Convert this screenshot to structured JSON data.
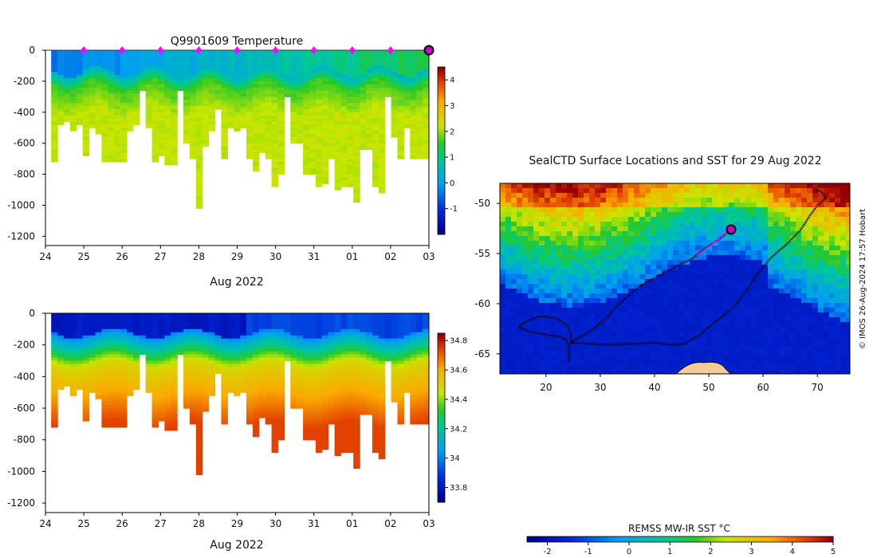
{
  "chart_data": [
    {
      "type": "heatmap",
      "title": "Q9901609  Temperature",
      "xlabel": "Aug 2022",
      "ylabel": "",
      "x_ticks": [
        "24",
        "25",
        "26",
        "27",
        "28",
        "29",
        "30",
        "31",
        "01",
        "02",
        "03"
      ],
      "y_ticks": [
        0,
        -200,
        -400,
        -600,
        -800,
        -1000,
        -1200
      ],
      "ylim": [
        -1260,
        0
      ],
      "colorbar": {
        "min": -2,
        "max": 4.5,
        "ticks": [
          -1,
          0,
          1,
          2,
          3,
          4
        ]
      },
      "profile_markers_day": [
        25,
        26,
        27,
        28,
        29,
        30,
        31,
        32,
        33
      ],
      "current_position_day": 34
    },
    {
      "type": "heatmap",
      "title": "",
      "xlabel": "Aug 2022",
      "ylabel": "",
      "x_ticks": [
        "24",
        "25",
        "26",
        "27",
        "28",
        "29",
        "30",
        "31",
        "01",
        "02",
        "03"
      ],
      "y_ticks": [
        0,
        -200,
        -400,
        -600,
        -800,
        -1000,
        -1200
      ],
      "ylim": [
        -1260,
        0
      ],
      "colorbar": {
        "min": 33.7,
        "max": 34.85,
        "ticks": [
          33.8,
          34,
          34.2,
          34.4,
          34.6,
          34.8
        ]
      }
    },
    {
      "type": "map",
      "title": "SealCTD Surface Locations and SST for 29 Aug 2022",
      "x_ticks": [
        20,
        30,
        40,
        50,
        60,
        70
      ],
      "y_ticks": [
        -50,
        -55,
        -60,
        -65
      ],
      "xlim": [
        11.5,
        76
      ],
      "ylim": [
        -67,
        -48
      ],
      "colorbar": {
        "label": "REMSS MW-IR SST °C",
        "min": -2.5,
        "max": 5,
        "ticks": [
          -2,
          -1,
          0,
          1,
          2,
          3,
          4,
          5
        ]
      },
      "track": [
        [
          24.2,
          -65.8
        ],
        [
          24.3,
          -64.5
        ],
        [
          23.8,
          -63.6
        ],
        [
          22.4,
          -63.3
        ],
        [
          19.0,
          -63.0
        ],
        [
          16.5,
          -62.7
        ],
        [
          15.0,
          -62.3
        ],
        [
          16.2,
          -61.8
        ],
        [
          18.5,
          -61.3
        ],
        [
          20.5,
          -61.3
        ],
        [
          22.4,
          -61.6
        ],
        [
          24.0,
          -62.2
        ],
        [
          24.5,
          -62.9
        ],
        [
          24.6,
          -63.8
        ],
        [
          26.5,
          -63.3
        ],
        [
          29.0,
          -62.4
        ],
        [
          31.2,
          -61.4
        ],
        [
          33.0,
          -60.3
        ],
        [
          35.0,
          -59.3
        ],
        [
          37.0,
          -58.4
        ],
        [
          39.0,
          -57.7
        ],
        [
          41.0,
          -57.2
        ],
        [
          43.0,
          -56.6
        ],
        [
          45.0,
          -56.0
        ],
        [
          47.0,
          -55.5
        ],
        [
          49.0,
          -54.6
        ],
        [
          51.0,
          -53.9
        ],
        [
          52.8,
          -53.2
        ],
        [
          54.1,
          -52.6
        ]
      ],
      "track_recent": [
        [
          47.8,
          -55.2
        ],
        [
          49.3,
          -54.6
        ],
        [
          50.8,
          -54.0
        ],
        [
          52.3,
          -53.3
        ],
        [
          54.1,
          -52.6
        ]
      ],
      "track_return": [
        [
          24.5,
          -63.9
        ],
        [
          28.0,
          -64.0
        ],
        [
          32.0,
          -64.1
        ],
        [
          36.0,
          -64.0
        ],
        [
          40.0,
          -63.9
        ],
        [
          43.0,
          -64.1
        ],
        [
          45.5,
          -64.0
        ],
        [
          48.0,
          -63.2
        ],
        [
          51.0,
          -61.9
        ],
        [
          54.5,
          -60.4
        ],
        [
          57.0,
          -58.7
        ],
        [
          59.0,
          -57.0
        ],
        [
          61.5,
          -55.4
        ],
        [
          64.5,
          -54.0
        ],
        [
          67.0,
          -52.6
        ],
        [
          68.5,
          -51.3
        ],
        [
          70.0,
          -50.2
        ],
        [
          71.5,
          -49.5
        ],
        [
          70.8,
          -48.8
        ],
        [
          69.7,
          -48.7
        ]
      ],
      "current_position": [
        54.1,
        -52.6
      ]
    }
  ],
  "footer": {
    "credit": "© IMOS 26-Aug-2024 17:57 Hobart"
  }
}
